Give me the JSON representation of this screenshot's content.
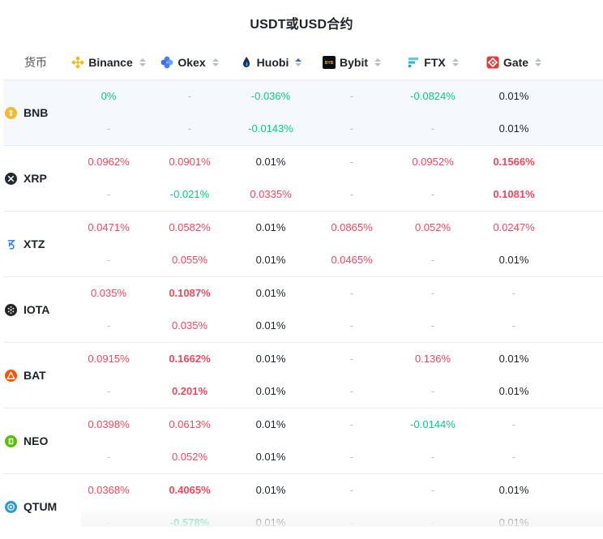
{
  "title": "USDT或USD合约",
  "header": {
    "coin_label": "货币",
    "exchanges": [
      {
        "name": "Binance",
        "icon": "binance-icon",
        "color": "#f0b90b",
        "sort_active": false
      },
      {
        "name": "Okex",
        "icon": "okex-icon",
        "color": "#4d7cf7",
        "sort_active": false
      },
      {
        "name": "Huobi",
        "icon": "huobi-icon",
        "color": "#1a2c5b",
        "sort_active": true
      },
      {
        "name": "Bybit",
        "icon": "bybit-icon",
        "color": "#0b0e11",
        "sort_active": false
      },
      {
        "name": "FTX",
        "icon": "ftx-icon",
        "color": "#5fcade",
        "sort_active": false
      },
      {
        "name": "Gate",
        "icon": "gate-icon",
        "color": "#e13c3c",
        "sort_active": false
      }
    ]
  },
  "rows": [
    {
      "coin": "BNB",
      "icon": "bnb-icon",
      "icon_color": "#f3ba2f",
      "highlight": true,
      "values": [
        [
          {
            "t": "0%",
            "c": "neg",
            "b": false
          },
          {
            "t": "-",
            "c": "dash"
          }
        ],
        [
          {
            "t": "-",
            "c": "dash"
          },
          {
            "t": "-",
            "c": "dash"
          }
        ],
        [
          {
            "t": "-0.036%",
            "c": "neg"
          },
          {
            "t": "-0.0143%",
            "c": "neg"
          }
        ],
        [
          {
            "t": "-",
            "c": "dash"
          },
          {
            "t": "-",
            "c": "dash"
          }
        ],
        [
          {
            "t": "-0.0824%",
            "c": "neg"
          },
          {
            "t": "-",
            "c": "dash"
          }
        ],
        [
          {
            "t": "0.01%",
            "c": "neu"
          },
          {
            "t": "0.01%",
            "c": "neu"
          }
        ]
      ]
    },
    {
      "coin": "XRP",
      "icon": "xrp-icon",
      "icon_color": "#23292f",
      "highlight": false,
      "values": [
        [
          {
            "t": "0.0962%",
            "c": "pos"
          },
          {
            "t": "-",
            "c": "dash"
          }
        ],
        [
          {
            "t": "0.0901%",
            "c": "pos"
          },
          {
            "t": "-0.021%",
            "c": "neg"
          }
        ],
        [
          {
            "t": "0.01%",
            "c": "neu"
          },
          {
            "t": "0.0335%",
            "c": "pos"
          }
        ],
        [
          {
            "t": "-",
            "c": "dash"
          },
          {
            "t": "-",
            "c": "dash"
          }
        ],
        [
          {
            "t": "0.0952%",
            "c": "pos"
          },
          {
            "t": "-",
            "c": "dash"
          }
        ],
        [
          {
            "t": "0.1566%",
            "c": "pos",
            "b": true
          },
          {
            "t": "0.1081%",
            "c": "pos",
            "b": true
          }
        ]
      ]
    },
    {
      "coin": "XTZ",
      "icon": "xtz-icon",
      "icon_color": "#2c7df7",
      "highlight": false,
      "values": [
        [
          {
            "t": "0.0471%",
            "c": "pos"
          },
          {
            "t": "-",
            "c": "dash"
          }
        ],
        [
          {
            "t": "0.0582%",
            "c": "pos"
          },
          {
            "t": "0.055%",
            "c": "pos"
          }
        ],
        [
          {
            "t": "0.01%",
            "c": "neu"
          },
          {
            "t": "0.01%",
            "c": "neu"
          }
        ],
        [
          {
            "t": "0.0865%",
            "c": "pos"
          },
          {
            "t": "0.0465%",
            "c": "pos"
          }
        ],
        [
          {
            "t": "0.052%",
            "c": "pos"
          },
          {
            "t": "-",
            "c": "dash"
          }
        ],
        [
          {
            "t": "0.0247%",
            "c": "pos"
          },
          {
            "t": "0.01%",
            "c": "neu"
          }
        ]
      ]
    },
    {
      "coin": "IOTA",
      "icon": "iota-icon",
      "icon_color": "#242424",
      "highlight": false,
      "values": [
        [
          {
            "t": "0.035%",
            "c": "pos"
          },
          {
            "t": "-",
            "c": "dash"
          }
        ],
        [
          {
            "t": "0.1087%",
            "c": "pos",
            "b": true
          },
          {
            "t": "0.035%",
            "c": "pos"
          }
        ],
        [
          {
            "t": "0.01%",
            "c": "neu"
          },
          {
            "t": "0.01%",
            "c": "neu"
          }
        ],
        [
          {
            "t": "-",
            "c": "dash"
          },
          {
            "t": "-",
            "c": "dash"
          }
        ],
        [
          {
            "t": "-",
            "c": "dash"
          },
          {
            "t": "-",
            "c": "dash"
          }
        ],
        [
          {
            "t": "-",
            "c": "dash"
          },
          {
            "t": "-",
            "c": "dash"
          }
        ]
      ]
    },
    {
      "coin": "BAT",
      "icon": "bat-icon",
      "icon_color": "#ff5000",
      "highlight": false,
      "values": [
        [
          {
            "t": "0.0915%",
            "c": "pos"
          },
          {
            "t": "-",
            "c": "dash"
          }
        ],
        [
          {
            "t": "0.1662%",
            "c": "pos",
            "b": true
          },
          {
            "t": "0.201%",
            "c": "pos",
            "b": true
          }
        ],
        [
          {
            "t": "0.01%",
            "c": "neu"
          },
          {
            "t": "0.01%",
            "c": "neu"
          }
        ],
        [
          {
            "t": "-",
            "c": "dash"
          },
          {
            "t": "-",
            "c": "dash"
          }
        ],
        [
          {
            "t": "0.136%",
            "c": "pos"
          },
          {
            "t": "-",
            "c": "dash"
          }
        ],
        [
          {
            "t": "0.01%",
            "c": "neu"
          },
          {
            "t": "0.01%",
            "c": "neu"
          }
        ]
      ]
    },
    {
      "coin": "NEO",
      "icon": "neo-icon",
      "icon_color": "#58bf00",
      "highlight": false,
      "values": [
        [
          {
            "t": "0.0398%",
            "c": "pos"
          },
          {
            "t": "-",
            "c": "dash"
          }
        ],
        [
          {
            "t": "0.0613%",
            "c": "pos"
          },
          {
            "t": "0.052%",
            "c": "pos"
          }
        ],
        [
          {
            "t": "0.01%",
            "c": "neu"
          },
          {
            "t": "0.01%",
            "c": "neu"
          }
        ],
        [
          {
            "t": "-",
            "c": "dash"
          },
          {
            "t": "-",
            "c": "dash"
          }
        ],
        [
          {
            "t": "-0.0144%",
            "c": "neg"
          },
          {
            "t": "-",
            "c": "dash"
          }
        ],
        [
          {
            "t": "-",
            "c": "dash"
          },
          {
            "t": "-",
            "c": "dash"
          }
        ]
      ]
    },
    {
      "coin": "QTUM",
      "icon": "qtum-icon",
      "icon_color": "#2e9ad0",
      "highlight": false,
      "values": [
        [
          {
            "t": "0.0368%",
            "c": "pos"
          },
          {
            "t": "-",
            "c": "dash"
          }
        ],
        [
          {
            "t": "0.4065%",
            "c": "pos",
            "b": true
          },
          {
            "t": "-0.578%",
            "c": "neg",
            "b": true
          }
        ],
        [
          {
            "t": "0.01%",
            "c": "neu"
          },
          {
            "t": "0.01%",
            "c": "neu"
          }
        ],
        [
          {
            "t": "-",
            "c": "dash"
          },
          {
            "t": "-",
            "c": "dash"
          }
        ],
        [
          {
            "t": "-",
            "c": "dash"
          },
          {
            "t": "-",
            "c": "dash"
          }
        ],
        [
          {
            "t": "0.01%",
            "c": "neu"
          },
          {
            "t": "0.01%",
            "c": "neu"
          }
        ]
      ]
    }
  ]
}
